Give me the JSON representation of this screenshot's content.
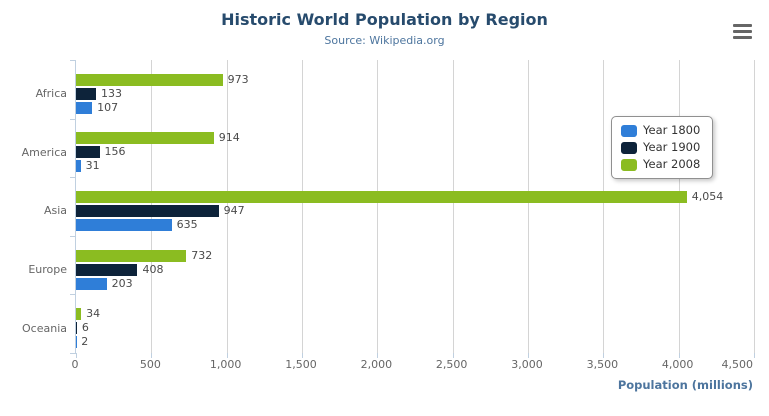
{
  "header": {
    "title": "Historic World Population by Region",
    "subtitle": "Source: Wikipedia.org"
  },
  "export_menu": {
    "icon": "hamburger-menu-icon",
    "tooltip": "chart context menu"
  },
  "colors": {
    "title_text": "#274b6d",
    "subtitle_text": "#4d759e",
    "axis_title_text": "#4d759e",
    "axis_line": "#c0d0e0",
    "gridline": "#d4d4d4",
    "tick_label_text": "#666666",
    "data_label_text": "#4a4a4a",
    "series_year_1800": "#2f7ed8",
    "series_year_1900": "#0d233a",
    "series_year_2008": "#8bbc21"
  },
  "legend": {
    "position": "right",
    "items": [
      {
        "label": "Year 1800",
        "color": "#2f7ed8"
      },
      {
        "label": "Year 1900",
        "color": "#0d233a"
      },
      {
        "label": "Year 2008",
        "color": "#8bbc21"
      }
    ]
  },
  "chart_data": {
    "type": "bar",
    "orientation": "horizontal",
    "title": "Historic World Population by Region",
    "subtitle": "Source: Wikipedia.org",
    "categories": [
      "Africa",
      "America",
      "Asia",
      "Europe",
      "Oceania"
    ],
    "series": [
      {
        "name": "Year 1800",
        "color": "#2f7ed8",
        "values": [
          107,
          31,
          635,
          203,
          2
        ]
      },
      {
        "name": "Year 1900",
        "color": "#0d233a",
        "values": [
          133,
          156,
          947,
          408,
          6
        ]
      },
      {
        "name": "Year 2008",
        "color": "#8bbc21",
        "values": [
          973,
          914,
          4054,
          732,
          34
        ]
      }
    ],
    "bar_order_top_to_bottom": [
      "Year 2008",
      "Year 1900",
      "Year 1800"
    ],
    "data_labels": true,
    "xlabel": "Population (millions)",
    "xlabel_align": "right",
    "xlim": [
      0,
      4500
    ],
    "x_ticks": [
      "0",
      "500",
      "1,000",
      "1,500",
      "2,000",
      "2,500",
      "3,000",
      "3,500",
      "4,000",
      "4,500"
    ],
    "grid": true,
    "legend_position": "right"
  }
}
